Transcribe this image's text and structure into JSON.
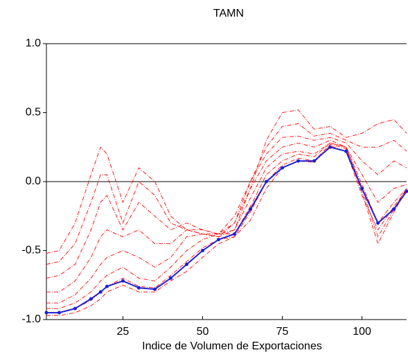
{
  "chart_data": {
    "type": "line",
    "title": "TAMN",
    "x_label": "Indice de Volumen de Exportaciones",
    "x": [
      1,
      5,
      10,
      15,
      18,
      20,
      25,
      30,
      35,
      40,
      45,
      50,
      55,
      60,
      65,
      70,
      75,
      80,
      85,
      90,
      95,
      100,
      105,
      110,
      114
    ],
    "xlim": [
      1,
      114
    ],
    "xticks": [
      25,
      50,
      75,
      100
    ],
    "ylim": [
      -1,
      1
    ],
    "yticks": [
      {
        "value": -1,
        "label": "-1.0"
      },
      -0.5,
      {
        "value": 0,
        "label": "0.0"
      },
      0.5,
      {
        "value": 1,
        "label": "1.0"
      }
    ],
    "zero_line": true,
    "series": [
      {
        "color": "#ff0000",
        "dashed": true,
        "values": [
          -0.52,
          -0.5,
          -0.3,
          0.05,
          0.25,
          0.2,
          -0.15,
          0.1,
          0.0,
          -0.25,
          -0.35,
          -0.38,
          -0.4,
          -0.35,
          -0.05,
          0.3,
          0.5,
          0.52,
          0.38,
          0.4,
          0.32,
          0.35,
          0.42,
          0.45,
          0.35
        ]
      },
      {
        "color": "#ff0000",
        "dashed": true,
        "values": [
          -0.6,
          -0.58,
          -0.45,
          -0.15,
          0.05,
          0.05,
          -0.3,
          0.0,
          -0.1,
          -0.3,
          -0.35,
          -0.38,
          -0.4,
          -0.3,
          0.0,
          0.25,
          0.4,
          0.42,
          0.33,
          0.35,
          0.3,
          0.25,
          0.25,
          0.3,
          0.22
        ]
      },
      {
        "color": "#ff0000",
        "dashed": true,
        "values": [
          -0.7,
          -0.68,
          -0.6,
          -0.35,
          -0.15,
          -0.1,
          -0.35,
          -0.15,
          -0.25,
          -0.35,
          -0.3,
          -0.35,
          -0.38,
          -0.25,
          0.0,
          0.2,
          0.32,
          0.33,
          0.3,
          0.32,
          0.28,
          0.15,
          0.05,
          0.15,
          0.1
        ]
      },
      {
        "color": "#ff0000",
        "dashed": true,
        "values": [
          -0.8,
          -0.8,
          -0.72,
          -0.55,
          -0.4,
          -0.35,
          -0.4,
          -0.35,
          -0.45,
          -0.45,
          -0.35,
          -0.35,
          -0.38,
          -0.3,
          -0.05,
          0.15,
          0.25,
          0.28,
          0.25,
          0.3,
          0.25,
          0.05,
          -0.15,
          -0.05,
          -0.02
        ]
      },
      {
        "color": "#ff0000",
        "dashed": true,
        "values": [
          -0.88,
          -0.88,
          -0.82,
          -0.7,
          -0.6,
          -0.55,
          -0.5,
          -0.55,
          -0.62,
          -0.55,
          -0.4,
          -0.38,
          -0.38,
          -0.35,
          -0.12,
          0.1,
          0.2,
          0.22,
          0.2,
          0.28,
          0.25,
          -0.02,
          -0.3,
          -0.15,
          -0.05
        ]
      },
      {
        "color": "#ff0000",
        "dashed": true,
        "values": [
          -0.92,
          -0.92,
          -0.88,
          -0.8,
          -0.72,
          -0.68,
          -0.62,
          -0.7,
          -0.72,
          -0.62,
          -0.5,
          -0.42,
          -0.38,
          -0.38,
          -0.18,
          0.05,
          0.15,
          0.2,
          0.18,
          0.28,
          0.25,
          -0.05,
          -0.4,
          -0.2,
          -0.05
        ]
      },
      {
        "color": "#ff0000",
        "dashed": true,
        "values": [
          -0.95,
          -0.95,
          -0.92,
          -0.86,
          -0.8,
          -0.76,
          -0.7,
          -0.76,
          -0.77,
          -0.68,
          -0.58,
          -0.48,
          -0.42,
          -0.4,
          -0.22,
          0.0,
          0.12,
          0.17,
          0.15,
          0.27,
          0.24,
          -0.08,
          -0.45,
          -0.22,
          -0.06
        ]
      },
      {
        "color": "#ff0000",
        "dashed": true,
        "values": [
          -0.97,
          -0.97,
          -0.95,
          -0.9,
          -0.85,
          -0.8,
          -0.75,
          -0.8,
          -0.8,
          -0.72,
          -0.65,
          -0.55,
          -0.45,
          -0.4,
          -0.28,
          -0.05,
          0.1,
          0.15,
          0.14,
          0.26,
          0.22,
          -0.1,
          -0.35,
          -0.18,
          -0.06
        ]
      },
      {
        "color": "#1f1fd0",
        "dashed": false,
        "markers": true,
        "values": [
          -0.95,
          -0.95,
          -0.92,
          -0.85,
          -0.8,
          -0.76,
          -0.72,
          -0.77,
          -0.78,
          -0.7,
          -0.6,
          -0.5,
          -0.42,
          -0.38,
          -0.2,
          0.0,
          0.1,
          0.15,
          0.15,
          0.25,
          0.22,
          -0.05,
          -0.3,
          -0.2,
          -0.07
        ]
      }
    ]
  }
}
